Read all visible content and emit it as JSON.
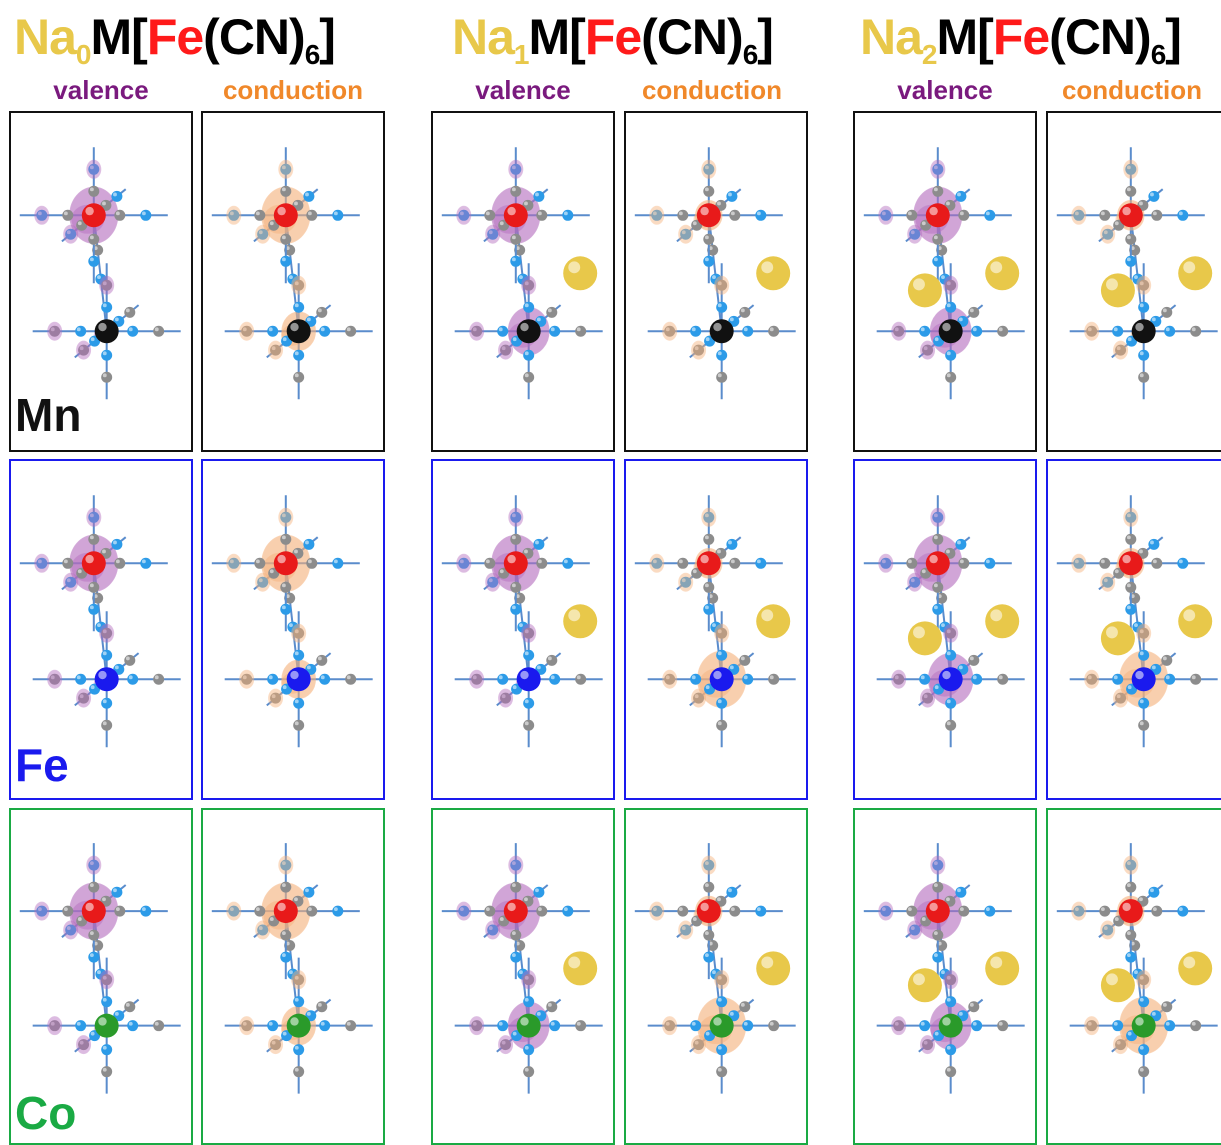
{
  "colors": {
    "sodium": "#e8c84a",
    "iron_title": "#ff1a1a",
    "valence": "#7a1a7e",
    "conduction": "#f0882a",
    "Mn": "#111111",
    "Fe": "#1a1aee",
    "Co": "#1aaa44",
    "carbon": "#8c8c8c",
    "nitrogen": "#2c9be8",
    "iron_atom": "#e81a1a",
    "valence_lobe": "#b36bbd",
    "conduction_lobe": "#f5b07a"
  },
  "groups": [
    {
      "na": "Na",
      "na_sub": "0",
      "m": "M[",
      "fe": "Fe",
      "cn": "(CN)",
      "cn_sub": "6",
      "close": "]",
      "sodium_count": 0
    },
    {
      "na": "Na",
      "na_sub": "1",
      "m": "M[",
      "fe": "Fe",
      "cn": "(CN)",
      "cn_sub": "6",
      "close": "]",
      "sodium_count": 1
    },
    {
      "na": "Na",
      "na_sub": "2",
      "m": "M[",
      "fe": "Fe",
      "cn": "(CN)",
      "cn_sub": "6",
      "close": "]",
      "sodium_count": 2
    }
  ],
  "columns": [
    "valence",
    "conduction"
  ],
  "metals": [
    {
      "label": "Mn",
      "atom_color": "#111111",
      "border": "#111111"
    },
    {
      "label": "Fe",
      "atom_color": "#1a1aee",
      "border": "#1a1aee"
    },
    {
      "label": "Co",
      "atom_color": "#2a9a2a",
      "border": "#1aaa44"
    }
  ]
}
